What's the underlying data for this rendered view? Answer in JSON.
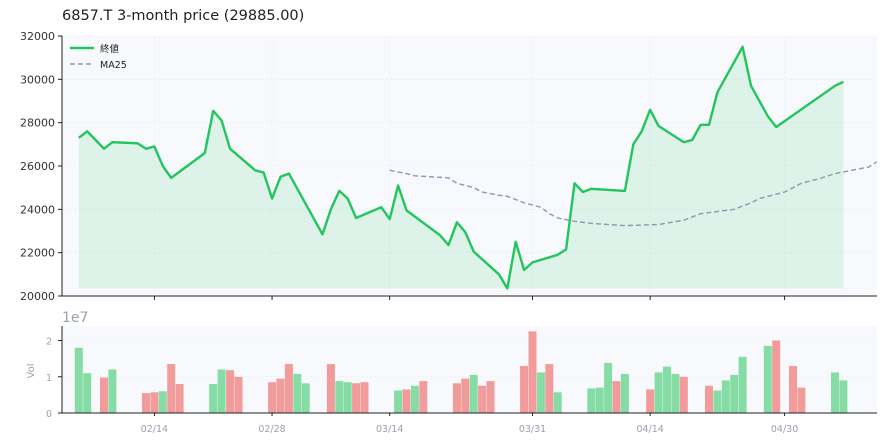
{
  "chart_data": {
    "type": "line",
    "title": "6857.T  3-month price (29885.00)",
    "price_axis": {
      "ylim": [
        20000,
        32000
      ],
      "ticks": [
        20000,
        22000,
        24000,
        26000,
        28000,
        30000,
        32000
      ]
    },
    "x_axis": {
      "start": "2025-02-03",
      "end": "2025-05-11",
      "tick_labels": [
        "02/14",
        "02/28",
        "03/14",
        "03/31",
        "04/14",
        "04/30"
      ]
    },
    "series": [
      {
        "name": "終値",
        "color": "#22c55e",
        "style": "solid",
        "points": [
          [
            "2025-02-05",
            27300
          ],
          [
            "2025-02-06",
            27600
          ],
          [
            "2025-02-07",
            27200
          ],
          [
            "2025-02-08",
            26800
          ],
          [
            "2025-02-09",
            27100
          ],
          [
            "2025-02-12",
            27050
          ],
          [
            "2025-02-13",
            26800
          ],
          [
            "2025-02-14",
            26900
          ],
          [
            "2025-02-15",
            26000
          ],
          [
            "2025-02-16",
            25450
          ],
          [
            "2025-02-20",
            26600
          ],
          [
            "2025-02-21",
            28550
          ],
          [
            "2025-02-22",
            28100
          ],
          [
            "2025-02-23",
            26800
          ],
          [
            "2025-02-26",
            25800
          ],
          [
            "2025-02-27",
            25700
          ],
          [
            "2025-02-28",
            24500
          ],
          [
            "2025-03-01",
            25500
          ],
          [
            "2025-03-02",
            25650
          ],
          [
            "2025-03-06",
            22850
          ],
          [
            "2025-03-07",
            24000
          ],
          [
            "2025-03-08",
            24850
          ],
          [
            "2025-03-09",
            24500
          ],
          [
            "2025-03-10",
            23600
          ],
          [
            "2025-03-13",
            24100
          ],
          [
            "2025-03-14",
            23550
          ],
          [
            "2025-03-15",
            25100
          ],
          [
            "2025-03-16",
            23950
          ],
          [
            "2025-03-20",
            22800
          ],
          [
            "2025-03-21",
            22350
          ],
          [
            "2025-03-22",
            23400
          ],
          [
            "2025-03-23",
            22950
          ],
          [
            "2025-03-24",
            22050
          ],
          [
            "2025-03-27",
            21000
          ],
          [
            "2025-03-28",
            20350
          ],
          [
            "2025-03-29",
            22500
          ],
          [
            "2025-03-30",
            21200
          ],
          [
            "2025-03-31",
            21550
          ],
          [
            "2025-04-03",
            21900
          ],
          [
            "2025-04-04",
            22150
          ],
          [
            "2025-04-05",
            25200
          ],
          [
            "2025-04-06",
            24800
          ],
          [
            "2025-04-07",
            24950
          ],
          [
            "2025-04-11",
            24850
          ],
          [
            "2025-04-12",
            27000
          ],
          [
            "2025-04-13",
            27600
          ],
          [
            "2025-04-14",
            28600
          ],
          [
            "2025-04-15",
            27850
          ],
          [
            "2025-04-18",
            27100
          ],
          [
            "2025-04-19",
            27200
          ],
          [
            "2025-04-20",
            27900
          ],
          [
            "2025-04-21",
            27900
          ],
          [
            "2025-04-22",
            29400
          ],
          [
            "2025-04-25",
            31500
          ],
          [
            "2025-04-26",
            29700
          ],
          [
            "2025-04-28",
            28300
          ],
          [
            "2025-04-29",
            27800
          ],
          [
            "2025-05-06",
            29700
          ],
          [
            "2025-05-07",
            29885
          ]
        ]
      },
      {
        "name": "MA25",
        "color": "#8a9ab0",
        "style": "dashed",
        "points": [
          [
            "2025-03-14",
            25800
          ],
          [
            "2025-03-16",
            25650
          ],
          [
            "2025-03-17",
            25550
          ],
          [
            "2025-03-21",
            25450
          ],
          [
            "2025-03-22",
            25200
          ],
          [
            "2025-03-24",
            25000
          ],
          [
            "2025-03-25",
            24800
          ],
          [
            "2025-03-27",
            24650
          ],
          [
            "2025-03-28",
            24600
          ],
          [
            "2025-03-30",
            24300
          ],
          [
            "2025-04-01",
            24100
          ],
          [
            "2025-04-02",
            23800
          ],
          [
            "2025-04-03",
            23600
          ],
          [
            "2025-04-05",
            23450
          ],
          [
            "2025-04-07",
            23350
          ],
          [
            "2025-04-11",
            23250
          ],
          [
            "2025-04-15",
            23300
          ],
          [
            "2025-04-18",
            23500
          ],
          [
            "2025-04-20",
            23800
          ],
          [
            "2025-04-22",
            23900
          ],
          [
            "2025-04-24",
            24000
          ],
          [
            "2025-04-26",
            24300
          ],
          [
            "2025-04-27",
            24500
          ],
          [
            "2025-04-30",
            24800
          ],
          [
            "2025-05-02",
            25200
          ],
          [
            "2025-05-04",
            25400
          ],
          [
            "2025-05-06",
            25650
          ],
          [
            "2025-05-08",
            25800
          ],
          [
            "2025-05-10",
            25950
          ],
          [
            "2025-05-11",
            26200
          ]
        ]
      }
    ],
    "volume": {
      "ylabel": "Vol",
      "offset_label": "1e7",
      "ylim": [
        0,
        2.4
      ],
      "ticks": [
        0,
        1,
        2
      ],
      "up_color": "#86dca5",
      "down_color": "#f29b9b",
      "bars": [
        [
          "2025-02-05",
          1.8,
          "up"
        ],
        [
          "2025-02-06",
          1.1,
          "up"
        ],
        [
          "2025-02-08",
          0.98,
          "down"
        ],
        [
          "2025-02-09",
          1.2,
          "up"
        ],
        [
          "2025-02-13",
          0.55,
          "down"
        ],
        [
          "2025-02-14",
          0.57,
          "down"
        ],
        [
          "2025-02-15",
          0.6,
          "up"
        ],
        [
          "2025-02-16",
          1.35,
          "down"
        ],
        [
          "2025-02-17",
          0.8,
          "down"
        ],
        [
          "2025-02-21",
          0.8,
          "up"
        ],
        [
          "2025-02-22",
          1.2,
          "up"
        ],
        [
          "2025-02-23",
          1.18,
          "down"
        ],
        [
          "2025-02-24",
          1.0,
          "down"
        ],
        [
          "2025-02-28",
          0.85,
          "down"
        ],
        [
          "2025-03-01",
          0.95,
          "down"
        ],
        [
          "2025-03-02",
          1.35,
          "down"
        ],
        [
          "2025-03-03",
          1.08,
          "up"
        ],
        [
          "2025-03-04",
          0.82,
          "up"
        ],
        [
          "2025-03-07",
          1.35,
          "down"
        ],
        [
          "2025-03-08",
          0.88,
          "up"
        ],
        [
          "2025-03-09",
          0.85,
          "up"
        ],
        [
          "2025-03-10",
          0.82,
          "down"
        ],
        [
          "2025-03-11",
          0.85,
          "down"
        ],
        [
          "2025-03-15",
          0.62,
          "up"
        ],
        [
          "2025-03-16",
          0.65,
          "down"
        ],
        [
          "2025-03-17",
          0.75,
          "up"
        ],
        [
          "2025-03-18",
          0.88,
          "down"
        ],
        [
          "2025-03-22",
          0.82,
          "down"
        ],
        [
          "2025-03-23",
          0.95,
          "down"
        ],
        [
          "2025-03-24",
          1.05,
          "up"
        ],
        [
          "2025-03-25",
          0.75,
          "down"
        ],
        [
          "2025-03-26",
          0.88,
          "down"
        ],
        [
          "2025-03-30",
          1.3,
          "down"
        ],
        [
          "2025-03-31",
          2.25,
          "down"
        ],
        [
          "2025-04-01",
          1.12,
          "up"
        ],
        [
          "2025-04-02",
          1.35,
          "down"
        ],
        [
          "2025-04-03",
          0.57,
          "up"
        ],
        [
          "2025-04-07",
          0.68,
          "up"
        ],
        [
          "2025-04-08",
          0.7,
          "up"
        ],
        [
          "2025-04-09",
          1.38,
          "up"
        ],
        [
          "2025-04-10",
          0.88,
          "down"
        ],
        [
          "2025-04-11",
          1.08,
          "up"
        ],
        [
          "2025-04-14",
          0.65,
          "down"
        ],
        [
          "2025-04-15",
          1.12,
          "up"
        ],
        [
          "2025-04-16",
          1.28,
          "up"
        ],
        [
          "2025-04-17",
          1.08,
          "up"
        ],
        [
          "2025-04-18",
          1.0,
          "down"
        ],
        [
          "2025-04-21",
          0.75,
          "down"
        ],
        [
          "2025-04-22",
          0.62,
          "up"
        ],
        [
          "2025-04-23",
          0.9,
          "up"
        ],
        [
          "2025-04-24",
          1.05,
          "up"
        ],
        [
          "2025-04-25",
          1.55,
          "up"
        ],
        [
          "2025-04-28",
          1.85,
          "up"
        ],
        [
          "2025-04-29",
          2.0,
          "down"
        ],
        [
          "2025-05-01",
          1.3,
          "down"
        ],
        [
          "2025-05-02",
          0.7,
          "down"
        ],
        [
          "2025-05-06",
          1.12,
          "up"
        ],
        [
          "2025-05-07",
          0.9,
          "up"
        ]
      ]
    },
    "legend": {
      "placement": "top-left",
      "entries": [
        "終値",
        "MA25"
      ]
    },
    "grid": true,
    "area_fill_color": "#22c55e"
  }
}
